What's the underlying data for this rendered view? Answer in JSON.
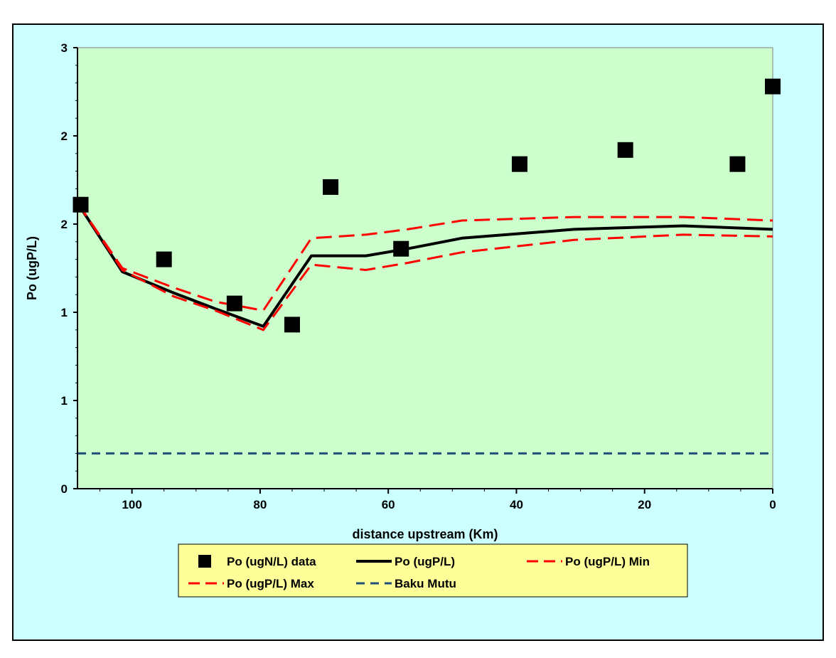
{
  "chart_data": {
    "type": "line",
    "xlabel": "distance upstream (Km)",
    "ylabel": "Po (ugP/L)",
    "xlim": [
      108.5,
      0
    ],
    "ylim": [
      0,
      2.5
    ],
    "x_ticks": [
      100,
      80,
      60,
      40,
      20,
      0
    ],
    "y_ticks": [
      0,
      0.5,
      1,
      1.5,
      2,
      2.5
    ],
    "y_tick_labels": [
      "0",
      "1",
      "1",
      "2",
      "2",
      "3"
    ],
    "grid": false,
    "legend_placement": "bottom",
    "plot_background": "#ccffcc",
    "chart_background": "#ccffff",
    "legend_background": "#ffff99",
    "series": [
      {
        "name": "Po (ugN/L) data",
        "kind": "scatter",
        "marker": "square",
        "color": "#000000",
        "x": [
          108,
          95,
          84,
          75,
          69,
          58,
          39.5,
          23,
          5.5,
          0
        ],
        "y": [
          1.61,
          1.3,
          1.05,
          0.93,
          1.71,
          1.36,
          1.84,
          1.92,
          1.84,
          2.28
        ]
      },
      {
        "name": "Po (ugP/L)",
        "kind": "line",
        "color": "#000000",
        "dash": "solid",
        "x": [
          108.5,
          101.5,
          93.5,
          87,
          79.5,
          72,
          63.5,
          57,
          48.5,
          31,
          14,
          0
        ],
        "y": [
          1.62,
          1.23,
          1.11,
          1.02,
          0.92,
          1.32,
          1.32,
          1.36,
          1.42,
          1.47,
          1.49,
          1.47
        ]
      },
      {
        "name": "Po (ugP/L) Min",
        "kind": "line",
        "color": "#ff0000",
        "dash": "dashed",
        "x": [
          108.5,
          101.5,
          93.5,
          87,
          79.5,
          72,
          63.5,
          57,
          48.5,
          31,
          14,
          0
        ],
        "y": [
          1.62,
          1.24,
          1.09,
          1.01,
          0.9,
          1.27,
          1.24,
          1.28,
          1.34,
          1.41,
          1.44,
          1.43
        ]
      },
      {
        "name": "Po (ugP/L) Max",
        "kind": "line",
        "color": "#ff0000",
        "dash": "dashed",
        "x": [
          108.5,
          101.5,
          93.5,
          87,
          79.5,
          72,
          63.5,
          57,
          48.5,
          31,
          14,
          0
        ],
        "y": [
          1.62,
          1.25,
          1.14,
          1.06,
          1.01,
          1.42,
          1.44,
          1.47,
          1.52,
          1.54,
          1.54,
          1.52
        ]
      },
      {
        "name": "Baku Mutu",
        "kind": "line",
        "color": "#1f4e79",
        "dash": "dashed",
        "x": [
          108.5,
          0
        ],
        "y": [
          0.2,
          0.2
        ]
      }
    ]
  }
}
